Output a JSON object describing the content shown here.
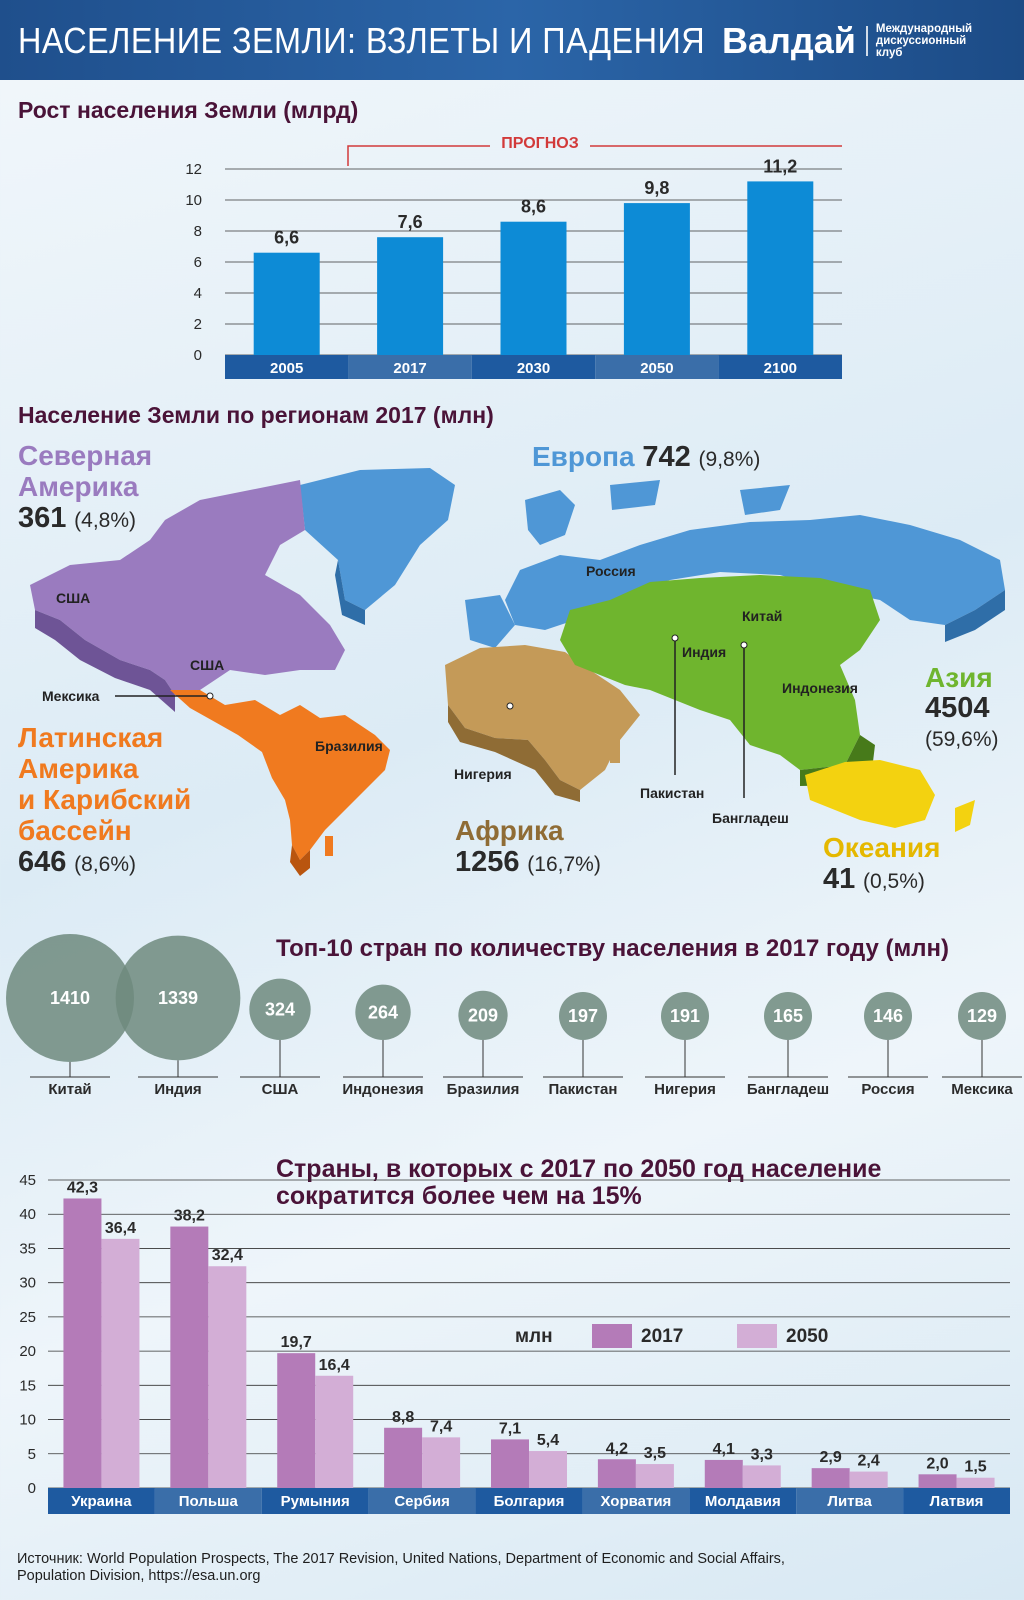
{
  "header": {
    "title": "НАСЕЛЕНИЕ ЗЕМЛИ: ВЗЛЕТЫ И ПАДЕНИЯ",
    "brand": "Валдай",
    "brand_sub_1": "Международный",
    "brand_sub_2": "дискуссионный клуб"
  },
  "colors": {
    "header": "#2b65a8",
    "bar_blue": "#0d8bd6",
    "axis_band": "#1e5aa0",
    "forecast_line": "#d23a3a",
    "north_america": "#9a7bbf",
    "latin_america": "#f07a1f",
    "europe": "#4f97d6",
    "africa": "#c49a58",
    "asia": "#6fb52e",
    "oceania": "#f3d210",
    "circle": "#6f8a7e",
    "bar_2017": "#b47bb8",
    "bar_2050": "#d3aed6"
  },
  "chart_data": [
    {
      "type": "bar",
      "title": "Рост населения Земли (млрд)",
      "categories": [
        "2005",
        "2017",
        "2030",
        "2050",
        "2100"
      ],
      "values": [
        6.6,
        7.6,
        8.6,
        9.8,
        11.2
      ],
      "value_labels": [
        "6,6",
        "7,6",
        "8,6",
        "9,8",
        "11,2"
      ],
      "yticks": [
        "0",
        "2",
        "4",
        "6",
        "8",
        "10",
        "12"
      ],
      "ylim": [
        0,
        12
      ],
      "annotation": "ПРОГНОЗ",
      "grid": true
    },
    {
      "type": "scatter",
      "title": "Топ-10 стран по количеству населения в 2017 году (млн)",
      "categories": [
        "Китай",
        "Индия",
        "США",
        "Индонезия",
        "Бразилия",
        "Пакистан",
        "Нигерия",
        "Бангладеш",
        "Россия",
        "Мексика"
      ],
      "values": [
        1410,
        1339,
        324,
        264,
        209,
        197,
        191,
        165,
        146,
        129
      ]
    },
    {
      "type": "bar",
      "title": "Страны, в которых с 2017 по 2050 год население сократится более чем на 15%",
      "categories": [
        "Украина",
        "Польша",
        "Румыния",
        "Сербия",
        "Болгария",
        "Хорватия",
        "Молдавия",
        "Литва",
        "Латвия"
      ],
      "series": [
        {
          "name": "2017",
          "values": [
            42.3,
            38.2,
            19.7,
            8.8,
            7.1,
            4.2,
            4.1,
            2.9,
            2.0
          ],
          "labels": [
            "42,3",
            "38,2",
            "19,7",
            "8,8",
            "7,1",
            "4,2",
            "4,1",
            "2,9",
            "2,0"
          ]
        },
        {
          "name": "2050",
          "values": [
            36.4,
            32.4,
            16.4,
            7.4,
            5.4,
            3.5,
            3.3,
            2.4,
            1.5
          ],
          "labels": [
            "36,4",
            "32,4",
            "16,4",
            "7,4",
            "5,4",
            "3,5",
            "3,3",
            "2,4",
            "1,5"
          ]
        }
      ],
      "yticks": [
        "0",
        "5",
        "10",
        "15",
        "20",
        "25",
        "30",
        "35",
        "40",
        "45"
      ],
      "ylim": [
        0,
        45
      ],
      "legend_unit": "млн",
      "grid": true
    }
  ],
  "map": {
    "title": "Население Земли по регионам 2017 (млн)",
    "regions": {
      "north_america": {
        "line1": "Северная",
        "line2": "Америка",
        "value": "361",
        "pct": "(4,8%)"
      },
      "europe": {
        "line1": "Европа",
        "value": "742",
        "pct": "(9,8%)"
      },
      "latin_america": {
        "line1": "Латинская",
        "line2": "Америка",
        "line3": "и Карибский",
        "line4": "бассейн",
        "value": "646",
        "pct": "(8,6%)"
      },
      "africa": {
        "line1": "Африка",
        "value": "1256",
        "pct": "(16,7%)"
      },
      "asia": {
        "line1": "Азия",
        "value": "4504",
        "pct": "(59,6%)"
      },
      "oceania": {
        "line1": "Океания",
        "value": "41",
        "pct": "(0,5%)"
      }
    },
    "labels": {
      "usa_1": "США",
      "usa_2": "США",
      "mexico": "Мексика",
      "brazil": "Бразилия",
      "russia": "Россия",
      "china": "Китай",
      "india": "Индия",
      "indonesia": "Индонезия",
      "nigeria": "Нигерия",
      "pakistan": "Пакистан",
      "bangladesh": "Бангладеш"
    }
  },
  "source": {
    "line1": "Источник: World Population Prospects, The 2017 Revision, United Nations, Department of Economic and Social Affairs,",
    "line2": "Population Division, https://esa.un.org"
  }
}
